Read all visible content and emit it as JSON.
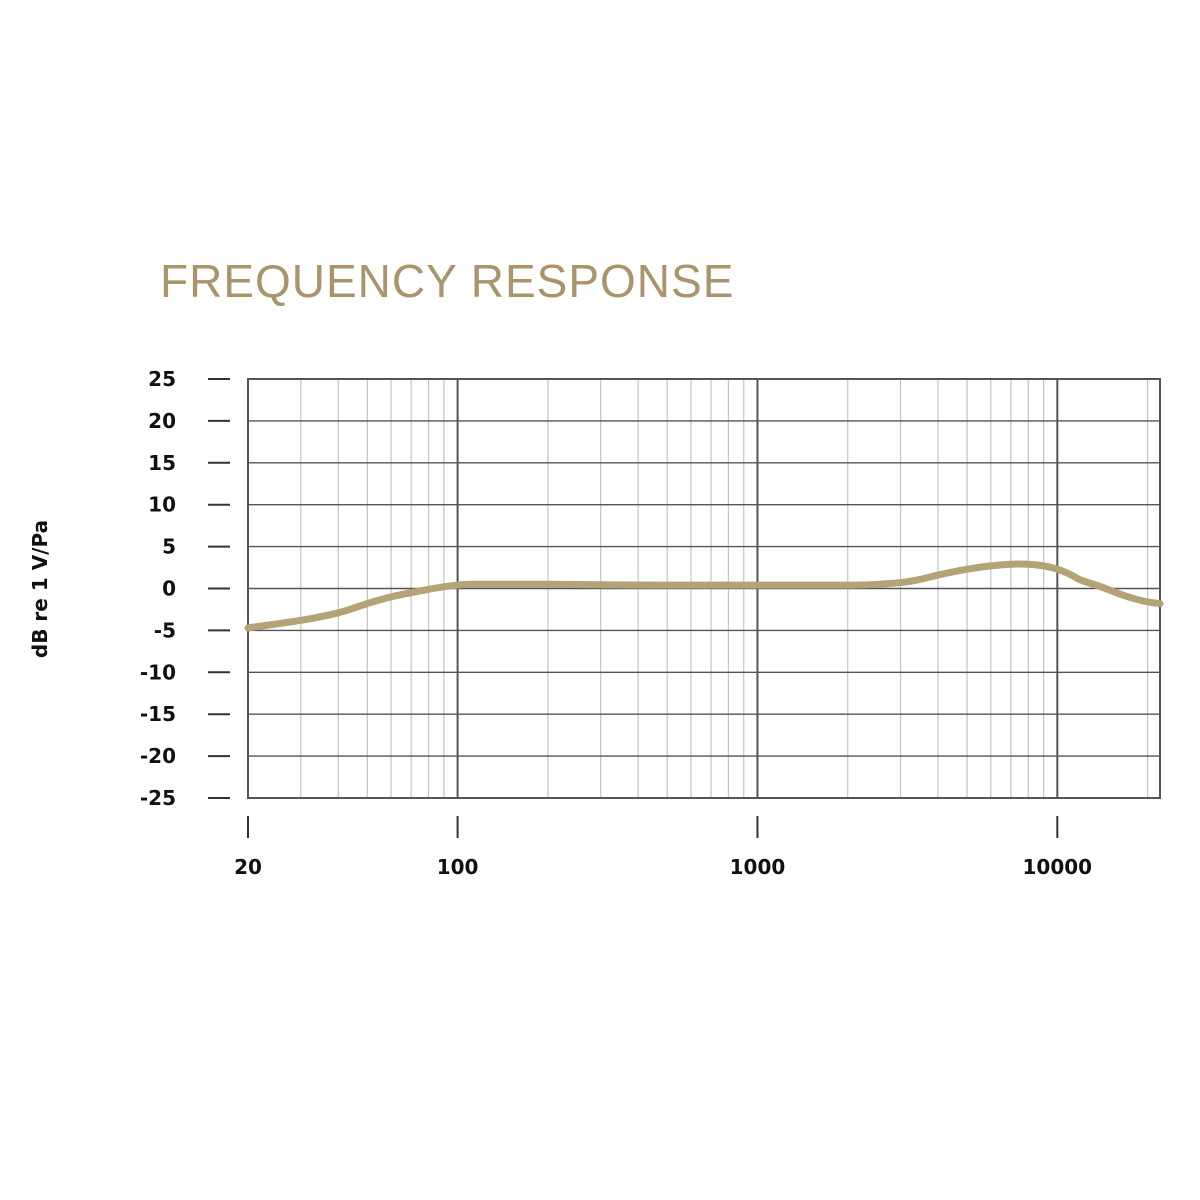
{
  "colors": {
    "title": "#a9946b",
    "curve": "#b3a376",
    "grid_major": "#555555",
    "grid_minor": "#c4c4c4",
    "tick_marks": "#333333"
  },
  "chart_data": {
    "type": "line",
    "title": "FREQUENCY RESPONSE",
    "xlabel": "",
    "ylabel": "dB re 1 V/Pa",
    "x_scale": "log",
    "xlim": [
      20,
      22000
    ],
    "ylim": [
      -25,
      25
    ],
    "x_ticks": [
      "20",
      "100",
      "1000",
      "10000"
    ],
    "y_ticks": [
      "25",
      "20",
      "15",
      "10",
      "5",
      "0",
      "-5",
      "-10",
      "-15",
      "-20",
      "-25"
    ],
    "grid": true,
    "legend": "none",
    "series": [
      {
        "x": [
          20,
          30,
          40,
          50,
          60,
          70,
          80,
          90,
          100,
          110,
          150,
          200,
          500,
          1000,
          2000,
          2500,
          3000,
          3500,
          4000,
          5000,
          6000,
          7000,
          8000,
          9000,
          10000,
          11000,
          12000,
          14000,
          16000,
          18000,
          20000,
          22000
        ],
        "y": [
          -4.7,
          -3.8,
          -2.9,
          -1.8,
          -1.0,
          -0.5,
          -0.1,
          0.2,
          0.4,
          0.5,
          0.5,
          0.5,
          0.4,
          0.4,
          0.4,
          0.5,
          0.7,
          1.1,
          1.6,
          2.3,
          2.7,
          2.9,
          2.9,
          2.7,
          2.3,
          1.7,
          1.0,
          0.2,
          -0.6,
          -1.2,
          -1.6,
          -1.8
        ]
      }
    ]
  }
}
